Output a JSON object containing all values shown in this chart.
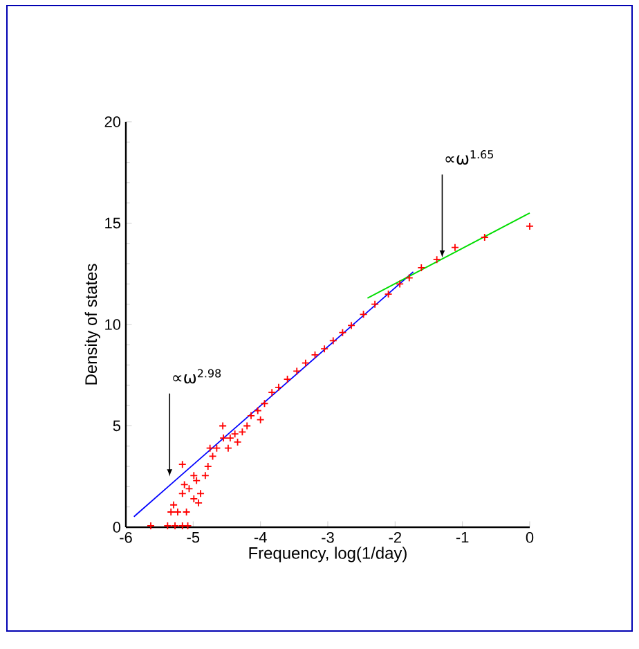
{
  "chart_data": {
    "type": "scatter",
    "xlabel": "Frequency, log(1/day)",
    "ylabel": "Density of states",
    "xlim": [
      -6,
      0
    ],
    "ylim": [
      0,
      20
    ],
    "xticks": [
      -6,
      -5,
      -4,
      -3,
      -2,
      -1,
      0
    ],
    "yticks": [
      0,
      5,
      10,
      15,
      20
    ],
    "grid": false,
    "legend": false,
    "series": [
      {
        "color": "#ff0000",
        "marker": "cross",
        "x": [
          -5.63,
          -5.38,
          -5.27,
          -5.16,
          -5.08,
          -5.33,
          -5.23,
          -5.1,
          -5.29,
          -5.16,
          -5.13,
          -5.16,
          -4.99,
          -4.92,
          -4.89,
          -4.95,
          -4.82,
          -4.78,
          -4.71,
          -4.65,
          -4.55,
          -4.56,
          -4.45,
          -4.38,
          -4.27,
          -4.2,
          -4.14,
          -4.04,
          -3.94,
          -3.83,
          -3.73,
          -3.6,
          -3.46,
          -3.33,
          -3.19,
          -3.05,
          -2.92,
          -2.78,
          -2.65,
          -2.47,
          -2.3,
          -2.1,
          -1.93,
          -1.79,
          -1.61,
          -1.38,
          -1.11,
          -0.67,
          0.0,
          -5.06,
          -4.99,
          -4.75,
          -4.48,
          -4.34,
          -4.0
        ],
        "values": [
          0.07,
          0.07,
          0.07,
          0.07,
          0.07,
          0.75,
          0.75,
          0.75,
          1.1,
          1.66,
          2.1,
          3.1,
          1.4,
          1.2,
          1.66,
          2.3,
          2.55,
          3.0,
          3.5,
          3.9,
          4.4,
          5.0,
          4.4,
          4.6,
          4.7,
          5.0,
          5.5,
          5.75,
          6.1,
          6.65,
          6.9,
          7.3,
          7.7,
          8.1,
          8.5,
          8.8,
          9.2,
          9.6,
          9.95,
          10.5,
          11.0,
          11.5,
          12.0,
          12.3,
          12.8,
          13.2,
          13.8,
          14.3,
          14.85,
          1.9,
          2.55,
          3.9,
          3.9,
          4.2,
          5.3
        ]
      },
      {
        "type": "line",
        "color": "#0000ff",
        "x": [
          -5.88,
          -1.73
        ],
        "values": [
          0.52,
          12.6
        ]
      },
      {
        "type": "line",
        "color": "#00dd00",
        "x": [
          -2.41,
          0.0
        ],
        "values": [
          11.3,
          15.5
        ]
      }
    ],
    "annotations": [
      {
        "text": "∝ω$^{2.98}$",
        "x": -5.35,
        "y": 2.5
      },
      {
        "text": "∝ω$^{1.65}$",
        "x": -1.3,
        "y": 13.3
      }
    ]
  }
}
